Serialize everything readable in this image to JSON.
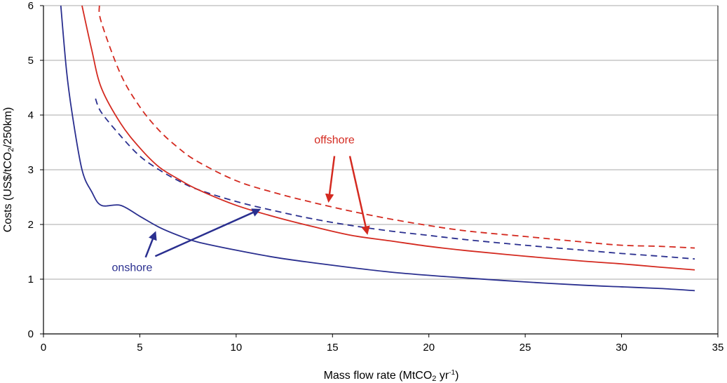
{
  "chart_data": {
    "type": "line",
    "title": "",
    "xlabel": {
      "pre": "Mass flow rate (MtCO",
      "sub": "2",
      "mid": " yr",
      "sup": "-1",
      "post": ")"
    },
    "ylabel": {
      "pre": "Costs (US$/tCO",
      "sub": "2",
      "post": "/250km)"
    },
    "xlim": [
      0,
      35
    ],
    "ylim": [
      0,
      6
    ],
    "xticks": [
      0,
      5,
      10,
      15,
      20,
      25,
      30,
      35
    ],
    "yticks": [
      0,
      1,
      2,
      3,
      4,
      5,
      6
    ],
    "grid": {
      "horizontal": true,
      "vertical": false
    },
    "series": [
      {
        "id": "onshore-low",
        "group": "onshore",
        "color": "#2a2f8f",
        "dash": "solid",
        "x": [
          0.9,
          1.2,
          1.5,
          2,
          2.5,
          3,
          4,
          5,
          6,
          7,
          8,
          10,
          12,
          14,
          16,
          18,
          20,
          22,
          25,
          28,
          30,
          32,
          33.8
        ],
        "y": [
          6.0,
          4.8,
          4.0,
          3.0,
          2.6,
          2.35,
          2.35,
          2.15,
          1.95,
          1.8,
          1.68,
          1.53,
          1.4,
          1.3,
          1.21,
          1.13,
          1.07,
          1.02,
          0.95,
          0.89,
          0.86,
          0.83,
          0.79
        ]
      },
      {
        "id": "onshore-high",
        "group": "onshore",
        "color": "#2a2f8f",
        "dash": "dashed",
        "x": [
          2.7,
          3,
          4,
          5,
          6,
          7,
          8,
          10,
          12,
          14,
          16,
          18,
          20,
          22,
          25,
          28,
          30,
          32,
          33.8
        ],
        "y": [
          4.3,
          4.05,
          3.62,
          3.25,
          3.0,
          2.8,
          2.64,
          2.42,
          2.25,
          2.1,
          1.98,
          1.88,
          1.8,
          1.72,
          1.62,
          1.53,
          1.47,
          1.42,
          1.37
        ]
      },
      {
        "id": "offshore-low",
        "group": "offshore",
        "color": "#d42a20",
        "dash": "solid",
        "x": [
          2,
          2.5,
          3,
          4,
          5,
          6,
          7,
          8,
          10,
          12,
          14,
          16,
          18,
          20,
          22,
          25,
          28,
          30,
          32,
          33.8
        ],
        "y": [
          6.0,
          5.2,
          4.5,
          3.85,
          3.4,
          3.05,
          2.83,
          2.64,
          2.35,
          2.14,
          1.96,
          1.8,
          1.7,
          1.6,
          1.52,
          1.42,
          1.33,
          1.28,
          1.22,
          1.17
        ]
      },
      {
        "id": "offshore-high",
        "group": "offshore",
        "color": "#d42a20",
        "dash": "dashed",
        "x": [
          2.9,
          3,
          4,
          5,
          6,
          7,
          8,
          10,
          12,
          14,
          16,
          18,
          20,
          22,
          25,
          28,
          30,
          32,
          33.8
        ],
        "y": [
          6.0,
          5.7,
          4.75,
          4.15,
          3.72,
          3.4,
          3.15,
          2.8,
          2.58,
          2.4,
          2.24,
          2.1,
          1.98,
          1.88,
          1.78,
          1.68,
          1.62,
          1.6,
          1.57
        ]
      }
    ],
    "annotations": [
      {
        "id": "offshore",
        "text": "offshore",
        "color": "#d42a20",
        "x": 15.1,
        "y": 3.48
      },
      {
        "id": "onshore",
        "text": "onshore",
        "color": "#2a2f8f",
        "x": 4.6,
        "y": 1.15
      }
    ],
    "arrows": [
      {
        "id": "offshore-arrow-dashed",
        "color": "#d42a20",
        "from": [
          15.1,
          3.25
        ],
        "to": [
          14.8,
          2.43
        ]
      },
      {
        "id": "offshore-arrow-solid",
        "color": "#d42a20",
        "from": [
          15.9,
          3.25
        ],
        "to": [
          16.8,
          1.84
        ]
      },
      {
        "id": "onshore-arrow-solid",
        "color": "#2a2f8f",
        "from": [
          5.3,
          1.4
        ],
        "to": [
          5.8,
          1.85
        ]
      },
      {
        "id": "onshore-arrow-dashed",
        "color": "#2a2f8f",
        "from": [
          5.8,
          1.42
        ],
        "to": [
          11.2,
          2.27
        ]
      }
    ]
  }
}
